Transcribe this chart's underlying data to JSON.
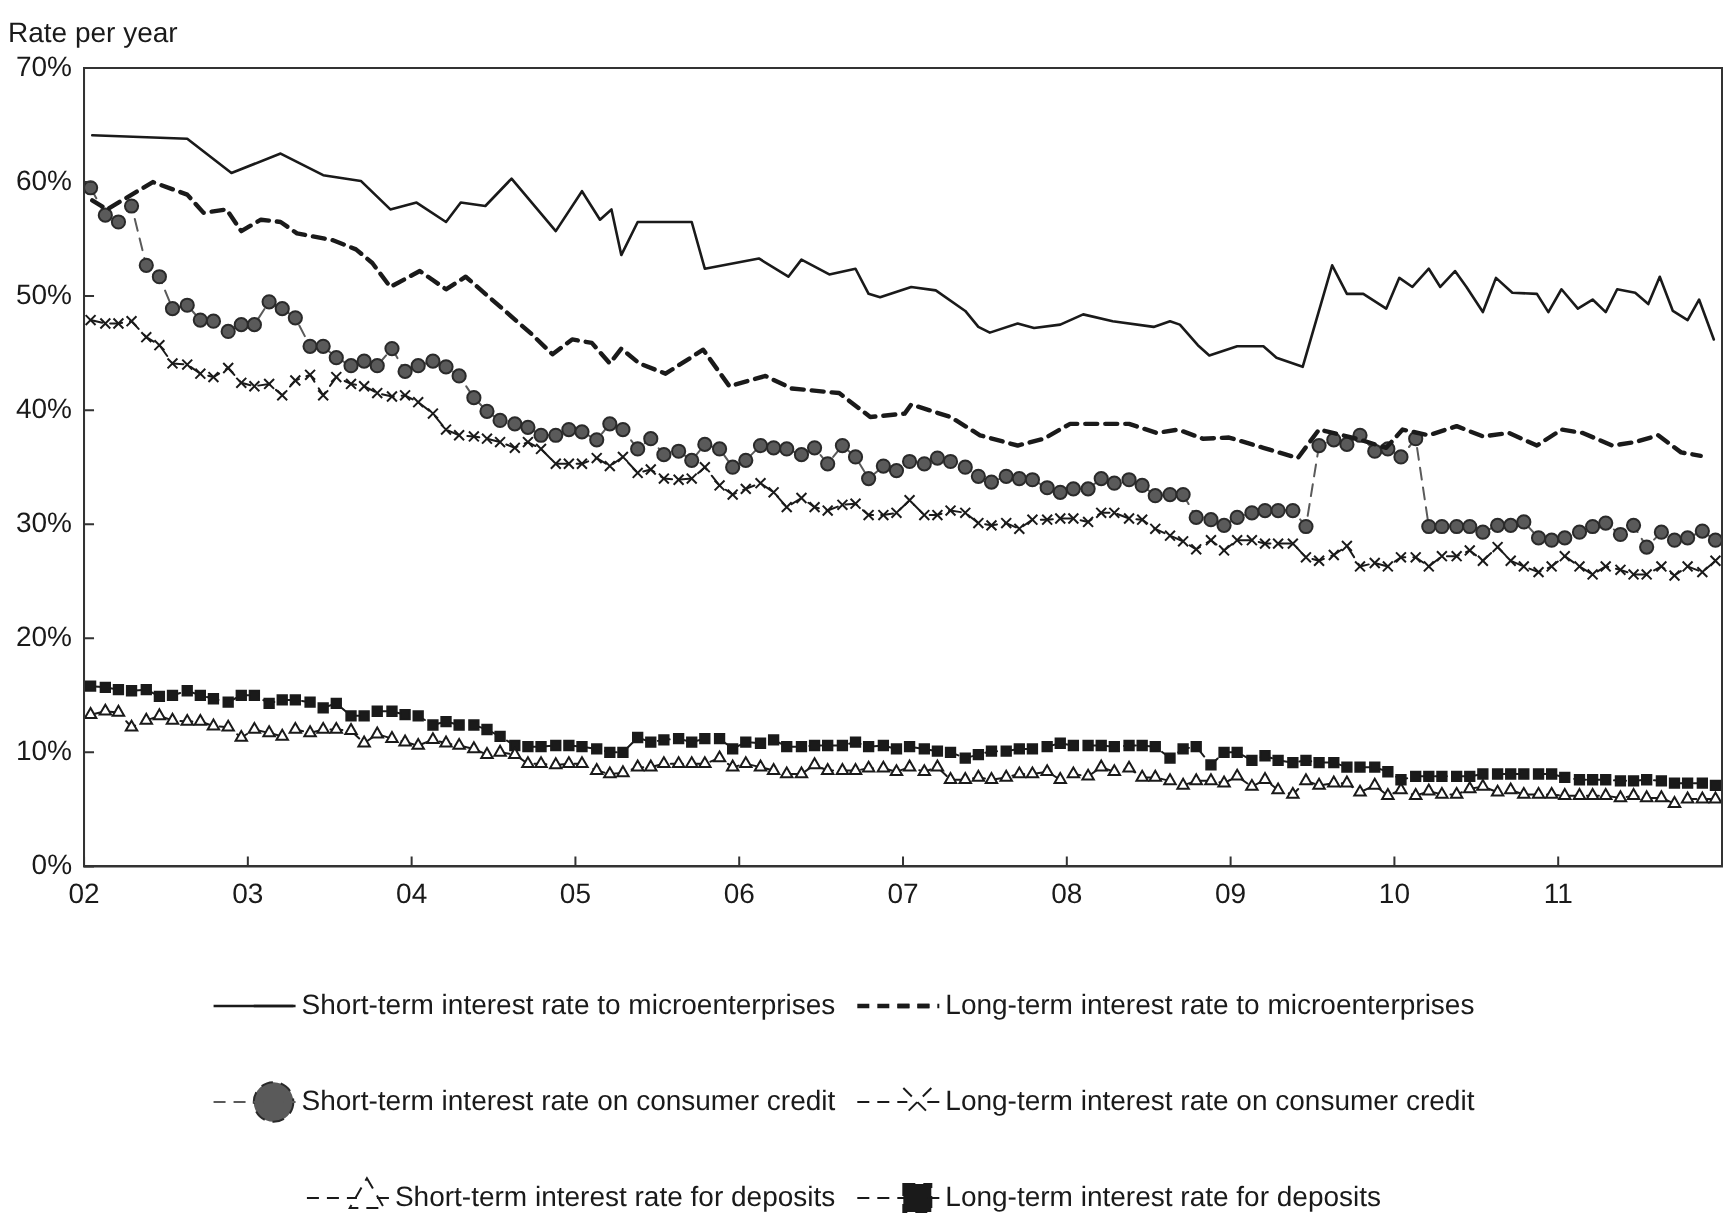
{
  "chart_data": {
    "type": "line",
    "ylabel": "Rate per year",
    "xlim": [
      2002,
      2012
    ],
    "xticks": [
      {
        "value": 2002,
        "label": "02"
      },
      {
        "value": 2003,
        "label": "03"
      },
      {
        "value": 2004,
        "label": "04"
      },
      {
        "value": 2005,
        "label": "05"
      },
      {
        "value": 2006,
        "label": "06"
      },
      {
        "value": 2007,
        "label": "07"
      },
      {
        "value": 2008,
        "label": "08"
      },
      {
        "value": 2009,
        "label": "09"
      },
      {
        "value": 2010,
        "label": "10"
      },
      {
        "value": 2011,
        "label": "11"
      }
    ],
    "ylim": [
      0,
      70
    ],
    "yticks": [
      {
        "value": 0,
        "label": "0%"
      },
      {
        "value": 10,
        "label": "10%"
      },
      {
        "value": 20,
        "label": "20%"
      },
      {
        "value": 30,
        "label": "30%"
      },
      {
        "value": 40,
        "label": "40%"
      },
      {
        "value": 50,
        "label": "50%"
      },
      {
        "value": 60,
        "label": "60%"
      },
      {
        "value": 70,
        "label": "70%"
      }
    ],
    "grid": false,
    "legend": "bottom",
    "x": [
      2002.04,
      2002.13,
      2002.21,
      2002.29,
      2002.38,
      2002.46,
      2002.54,
      2002.63,
      2002.71,
      2002.79,
      2002.88,
      2002.96,
      2003.04,
      2003.13,
      2003.21,
      2003.29,
      2003.38,
      2003.46,
      2003.54,
      2003.63,
      2003.71,
      2003.79,
      2003.88,
      2003.96,
      2004.04,
      2004.13,
      2004.21,
      2004.29,
      2004.38,
      2004.46,
      2004.54,
      2004.63,
      2004.71,
      2004.79,
      2004.88,
      2004.96,
      2005.04,
      2005.13,
      2005.21,
      2005.29,
      2005.38,
      2005.46,
      2005.54,
      2005.63,
      2005.71,
      2005.79,
      2005.88,
      2005.96,
      2006.04,
      2006.13,
      2006.21,
      2006.29,
      2006.38,
      2006.46,
      2006.54,
      2006.63,
      2006.71,
      2006.79,
      2006.88,
      2006.96,
      2007.04,
      2007.13,
      2007.21,
      2007.29,
      2007.38,
      2007.46,
      2007.54,
      2007.63,
      2007.71,
      2007.79,
      2007.88,
      2007.96,
      2008.04,
      2008.13,
      2008.21,
      2008.29,
      2008.38,
      2008.46,
      2008.54,
      2008.63,
      2008.71,
      2008.79,
      2008.88,
      2008.96,
      2009.04,
      2009.13,
      2009.21,
      2009.29,
      2009.38,
      2009.46,
      2009.54,
      2009.63,
      2009.71,
      2009.79,
      2009.88,
      2009.96,
      2010.04,
      2010.13,
      2010.21,
      2010.29,
      2010.38,
      2010.46,
      2010.54,
      2010.63,
      2010.71,
      2010.79,
      2010.88,
      2010.96,
      2011.04,
      2011.13,
      2011.21,
      2011.29,
      2011.38,
      2011.46,
      2011.54,
      2011.63,
      2011.71,
      2011.79,
      2011.88,
      2011.96
    ],
    "series": [
      {
        "name": "Short-term interest rate to microenterprises",
        "color": "#1a1a1a",
        "line_style": "solid",
        "marker": "none",
        "x": [
          2002.05,
          2002.63,
          2002.9,
          2003.2,
          2003.46,
          2003.69,
          2003.87,
          2004.03,
          2004.21,
          2004.3,
          2004.45,
          2004.61,
          2004.88,
          2005.04,
          2005.15,
          2005.22,
          2005.28,
          2005.38,
          2005.71,
          2005.79,
          2006.12,
          2006.3,
          2006.38,
          2006.55,
          2006.71,
          2006.79,
          2006.86,
          2007.05,
          2007.2,
          2007.38,
          2007.46,
          2007.53,
          2007.7,
          2007.8,
          2007.96,
          2008.1,
          2008.28,
          2008.53,
          2008.63,
          2008.69,
          2008.8,
          2008.87,
          2009.04,
          2009.2,
          2009.28,
          2009.44,
          2009.62,
          2009.71,
          2009.81,
          2009.95,
          2010.03,
          2010.11,
          2010.21,
          2010.28,
          2010.37,
          2010.44,
          2010.54,
          2010.62,
          2010.72,
          2010.87,
          2010.94,
          2011.02,
          2011.12,
          2011.21,
          2011.29,
          2011.36,
          2011.47,
          2011.55,
          2011.62,
          2011.7,
          2011.79,
          2011.86,
          2011.95
        ],
        "values": [
          64.1,
          63.8,
          60.8,
          62.5,
          60.6,
          60.1,
          57.6,
          58.2,
          56.5,
          58.2,
          57.9,
          60.3,
          55.7,
          59.2,
          56.7,
          57.6,
          53.6,
          56.5,
          56.5,
          52.4,
          53.3,
          51.7,
          53.2,
          51.9,
          52.4,
          50.2,
          49.9,
          50.8,
          50.5,
          48.7,
          47.3,
          46.8,
          47.6,
          47.2,
          47.5,
          48.4,
          47.8,
          47.3,
          47.8,
          47.5,
          45.7,
          44.8,
          45.6,
          45.6,
          44.6,
          43.8,
          52.7,
          50.2,
          50.2,
          48.9,
          51.6,
          50.8,
          52.4,
          50.8,
          52.2,
          50.8,
          48.6,
          51.6,
          50.3,
          50.2,
          48.6,
          50.6,
          48.9,
          49.7,
          48.6,
          50.6,
          50.3,
          49.3,
          51.7,
          48.7,
          47.9,
          49.7,
          46.2
        ]
      },
      {
        "name": "Long-term interest rate to microenterprises",
        "color": "#1a1a1a",
        "line_style": "dashed",
        "marker": "none",
        "x": [
          2002.05,
          2002.14,
          2002.42,
          2002.63,
          2002.73,
          2002.87,
          2002.96,
          2003.08,
          2003.2,
          2003.3,
          2003.52,
          2003.66,
          2003.76,
          2003.87,
          2004.05,
          2004.21,
          2004.33,
          2004.57,
          2004.73,
          2004.86,
          2004.98,
          2005.1,
          2005.21,
          2005.28,
          2005.39,
          2005.55,
          2005.78,
          2005.94,
          2006.16,
          2006.32,
          2006.61,
          2006.8,
          2007.01,
          2007.05,
          2007.29,
          2007.47,
          2007.7,
          2007.86,
          2008.02,
          2008.38,
          2008.55,
          2008.68,
          2008.83,
          2008.99,
          2009.2,
          2009.41,
          2009.54,
          2009.77,
          2009.95,
          2010.05,
          2010.21,
          2010.38,
          2010.54,
          2010.7,
          2010.87,
          2011.02,
          2011.15,
          2011.33,
          2011.47,
          2011.61,
          2011.75,
          2011.87
        ],
        "values": [
          58.4,
          57.6,
          60,
          58.9,
          57.3,
          57.6,
          55.7,
          56.7,
          56.5,
          55.5,
          54.9,
          54.1,
          52.9,
          50.8,
          52.2,
          50.6,
          51.7,
          48.7,
          46.7,
          44.9,
          46.2,
          45.9,
          44.1,
          45.4,
          44.1,
          43.2,
          45.3,
          42.1,
          43,
          41.9,
          41.5,
          39.4,
          39.7,
          40.5,
          39.4,
          37.8,
          36.9,
          37.5,
          38.8,
          38.8,
          38,
          38.3,
          37.5,
          37.6,
          36.7,
          35.8,
          38.3,
          37.5,
          36.7,
          38.3,
          37.8,
          38.6,
          37.7,
          38,
          36.9,
          38.3,
          38,
          36.9,
          37.2,
          37.8,
          36.3,
          36
        ]
      },
      {
        "name": "Short-term interest rate on consumer credit",
        "color": "#5a5a5a",
        "line_style": "dashed",
        "marker": "circle",
        "values": [
          59.5,
          57.1,
          56.5,
          57.9,
          52.7,
          51.7,
          48.9,
          49.2,
          47.9,
          47.8,
          46.9,
          47.5,
          47.5,
          49.5,
          48.9,
          48.1,
          45.6,
          45.6,
          44.6,
          43.9,
          44.3,
          43.9,
          45.4,
          43.4,
          43.9,
          44.3,
          43.8,
          43,
          41.1,
          39.9,
          39.1,
          38.8,
          38.5,
          37.8,
          37.8,
          38.3,
          38.1,
          37.4,
          38.8,
          38.3,
          36.6,
          37.5,
          36.1,
          36.4,
          35.6,
          37,
          36.6,
          35,
          35.6,
          36.9,
          36.7,
          36.6,
          36.1,
          36.7,
          35.3,
          36.9,
          35.9,
          34,
          35.1,
          34.7,
          35.5,
          35.3,
          35.8,
          35.5,
          35,
          34.2,
          33.7,
          34.2,
          34,
          33.9,
          33.2,
          32.8,
          33.1,
          33.1,
          34,
          33.6,
          33.9,
          33.4,
          32.5,
          32.6,
          32.6,
          30.6,
          30.4,
          29.9,
          30.6,
          31,
          31.2,
          31.2,
          31.2,
          29.8,
          36.9,
          37.4,
          37,
          37.8,
          36.4,
          36.6,
          35.9,
          37.5,
          29.8,
          29.8,
          29.8,
          29.8,
          29.3,
          29.9,
          29.9,
          30.2,
          28.8,
          28.6,
          28.8,
          29.3,
          29.8,
          30.1,
          29.1,
          29.9,
          28,
          29.3,
          28.6,
          28.8,
          29.4,
          28.6
        ]
      },
      {
        "name": "Long-term interest rate on consumer credit",
        "color": "#1a1a1a",
        "line_style": "dashed",
        "marker": "cross",
        "values": [
          47.9,
          47.6,
          47.6,
          47.8,
          46.4,
          45.7,
          44.1,
          44,
          43.2,
          42.9,
          43.7,
          42.4,
          42.1,
          42.3,
          41.3,
          42.6,
          43.1,
          41.3,
          42.9,
          42.3,
          42.1,
          41.5,
          41.2,
          41.3,
          40.7,
          39.7,
          38.3,
          37.8,
          37.7,
          37.5,
          37.2,
          36.7,
          37.2,
          36.6,
          35.3,
          35.3,
          35.3,
          35.8,
          35.1,
          35.9,
          34.5,
          34.8,
          34,
          33.9,
          34,
          35,
          33.4,
          32.6,
          33.1,
          33.6,
          32.8,
          31.5,
          32.3,
          31.5,
          31.2,
          31.7,
          31.8,
          30.8,
          30.8,
          31,
          32.1,
          30.8,
          30.8,
          31.2,
          31,
          30.1,
          29.9,
          30.1,
          29.6,
          30.4,
          30.4,
          30.5,
          30.5,
          30.2,
          31,
          31,
          30.5,
          30.4,
          29.6,
          29,
          28.5,
          27.8,
          28.6,
          27.7,
          28.6,
          28.6,
          28.3,
          28.3,
          28.3,
          27.1,
          26.8,
          27.3,
          28.1,
          26.3,
          26.6,
          26.3,
          27.1,
          27.1,
          26.3,
          27.2,
          27.2,
          27.7,
          26.8,
          28,
          26.8,
          26.3,
          25.8,
          26.3,
          27.2,
          26.3,
          25.6,
          26.3,
          26,
          25.6,
          25.6,
          26.3,
          25.5,
          26.3,
          25.8,
          26.8
        ]
      },
      {
        "name": "Short-term interest rate for deposits",
        "color": "#1a1a1a",
        "line_style": "dashed",
        "marker": "triangle",
        "values": [
          13.3,
          13.6,
          13.5,
          12.2,
          12.8,
          13.2,
          12.8,
          12.7,
          12.7,
          12.3,
          12.2,
          11.3,
          12,
          11.7,
          11.4,
          12,
          11.7,
          12,
          12,
          11.9,
          10.8,
          11.6,
          11.2,
          10.9,
          10.6,
          11.1,
          10.8,
          10.6,
          10.3,
          9.8,
          10,
          9.8,
          9,
          9,
          8.9,
          9,
          9,
          8.4,
          8.1,
          8.2,
          8.7,
          8.7,
          9,
          9,
          9,
          9,
          9.5,
          8.7,
          9,
          8.7,
          8.4,
          8.1,
          8.1,
          8.9,
          8.4,
          8.4,
          8.4,
          8.6,
          8.6,
          8.3,
          8.7,
          8.3,
          8.7,
          7.6,
          7.6,
          7.8,
          7.6,
          7.8,
          8.1,
          8.1,
          8.3,
          7.6,
          8.1,
          7.9,
          8.7,
          8.3,
          8.6,
          7.8,
          7.8,
          7.5,
          7.1,
          7.5,
          7.5,
          7.3,
          7.9,
          7,
          7.6,
          6.7,
          6.3,
          7.5,
          7.1,
          7.3,
          7.3,
          6.5,
          7.1,
          6.2,
          6.7,
          6.2,
          6.6,
          6.3,
          6.3,
          6.8,
          7,
          6.5,
          6.7,
          6.3,
          6.3,
          6.3,
          6.2,
          6.2,
          6.2,
          6.2,
          6,
          6.2,
          6,
          6,
          5.5,
          5.9,
          5.9,
          5.9
        ]
      },
      {
        "name": "Long-term interest rate for deposits",
        "color": "#1a1a1a",
        "line_style": "dashed",
        "marker": "square",
        "values": [
          15.8,
          15.7,
          15.5,
          15.4,
          15.5,
          14.9,
          15,
          15.4,
          15,
          14.7,
          14.4,
          15,
          15,
          14.3,
          14.6,
          14.6,
          14.4,
          13.9,
          14.3,
          13.2,
          13.2,
          13.6,
          13.6,
          13.3,
          13.2,
          12.4,
          12.7,
          12.4,
          12.4,
          12,
          11.4,
          10.6,
          10.5,
          10.5,
          10.6,
          10.6,
          10.5,
          10.3,
          10,
          10,
          11.3,
          10.9,
          11.1,
          11.2,
          10.9,
          11.2,
          11.2,
          10.3,
          10.9,
          10.8,
          11.1,
          10.5,
          10.5,
          10.6,
          10.6,
          10.6,
          10.9,
          10.5,
          10.6,
          10.3,
          10.5,
          10.3,
          10.1,
          10,
          9.5,
          9.8,
          10.1,
          10.1,
          10.3,
          10.3,
          10.5,
          10.8,
          10.6,
          10.6,
          10.6,
          10.5,
          10.6,
          10.6,
          10.5,
          9.5,
          10.3,
          10.5,
          8.9,
          10,
          10,
          9.3,
          9.7,
          9.3,
          9.1,
          9.3,
          9.1,
          9.1,
          8.7,
          8.7,
          8.7,
          8.3,
          7.6,
          7.9,
          7.9,
          7.9,
          7.9,
          7.9,
          8.1,
          8.1,
          8.1,
          8.1,
          8.1,
          8.1,
          7.8,
          7.6,
          7.6,
          7.6,
          7.5,
          7.5,
          7.6,
          7.5,
          7.3,
          7.3,
          7.3,
          7.1
        ]
      }
    ]
  }
}
